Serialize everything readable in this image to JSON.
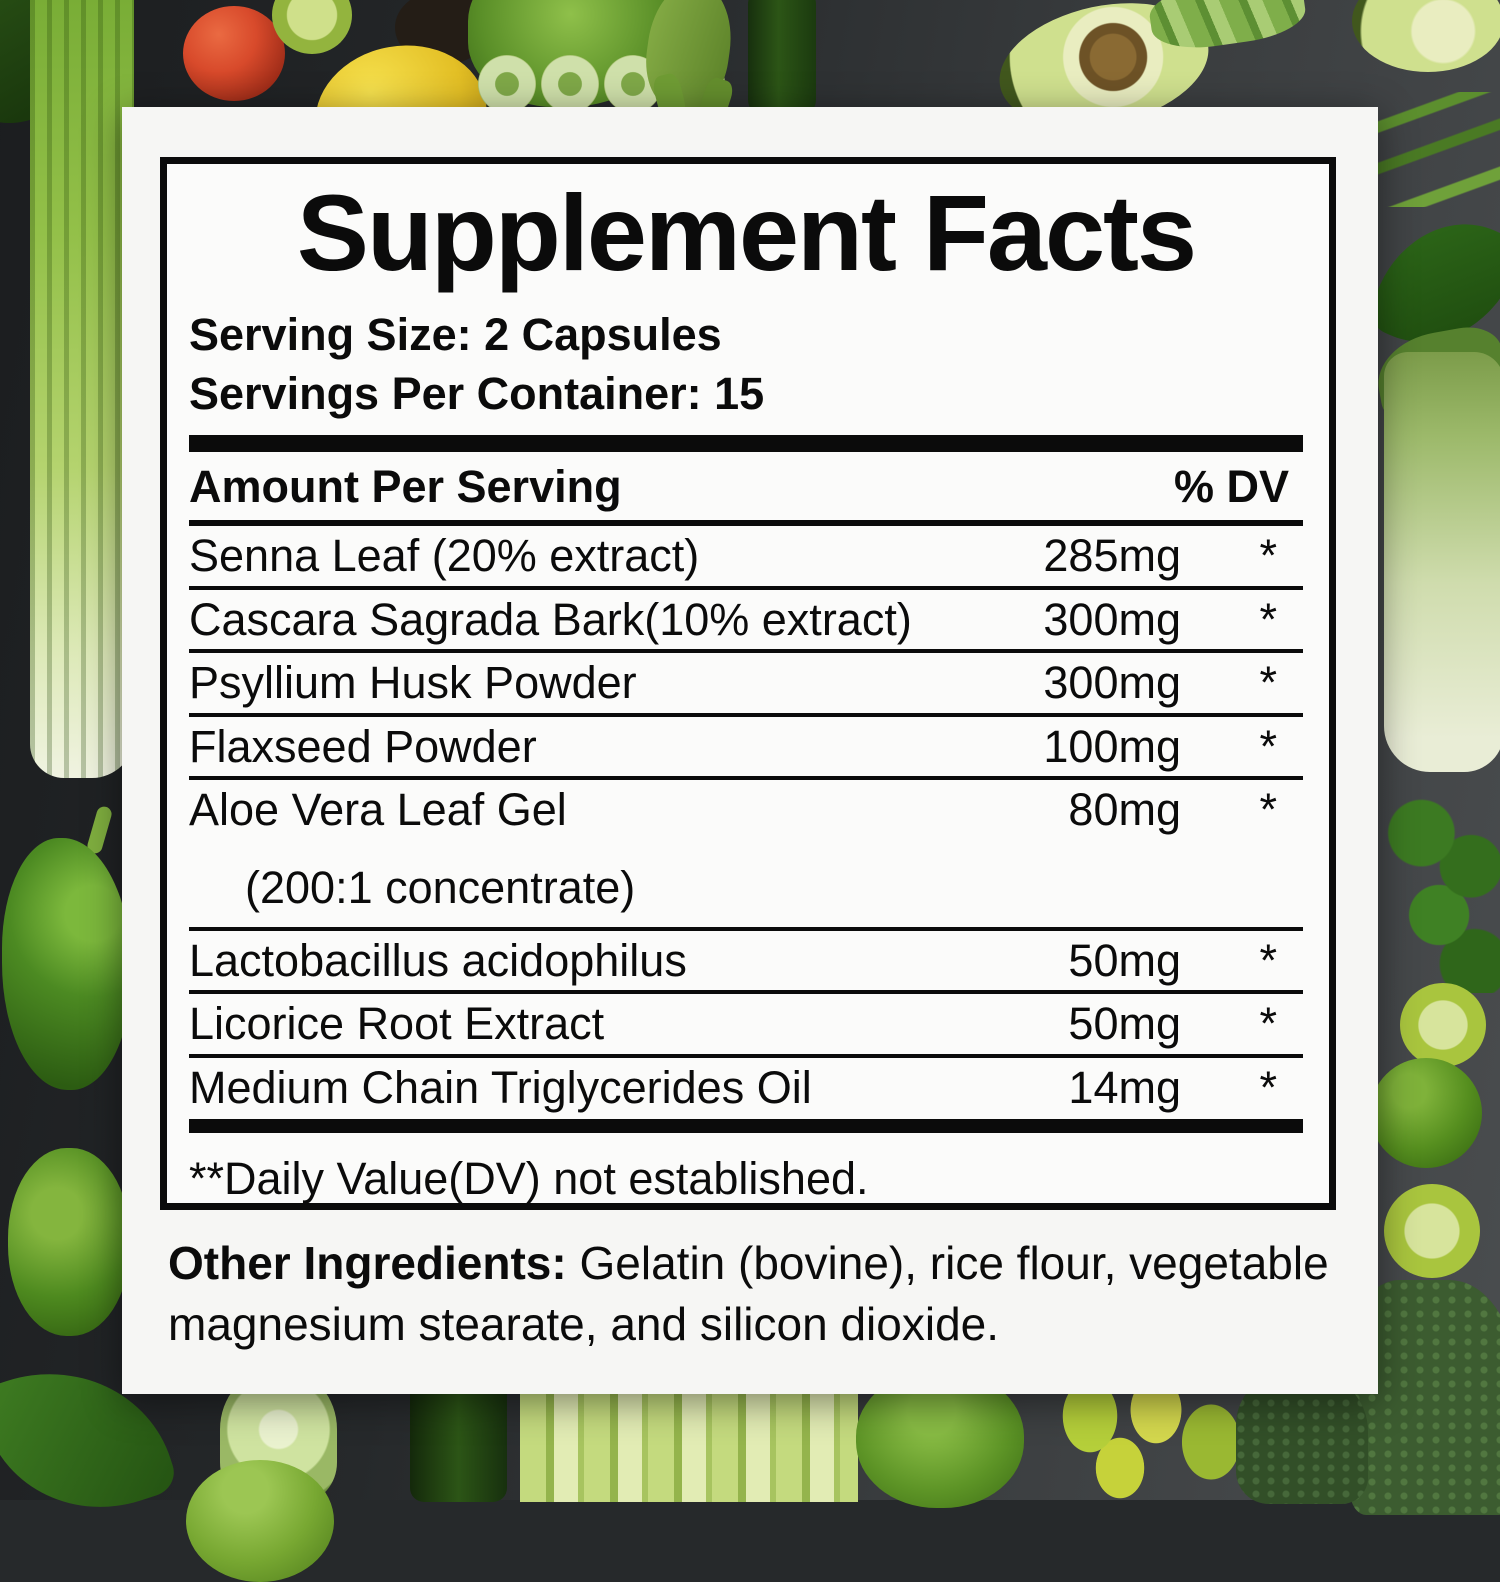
{
  "label": {
    "title": "Supplement Facts",
    "serving_size": "Serving Size: 2 Capsules",
    "servings_per_container": "Servings Per Container: 15",
    "table": {
      "amount_header": "Amount Per Serving",
      "dv_header": "% DV",
      "rows": [
        {
          "name": "Senna Leaf (20% extract)",
          "amount": "285mg",
          "dv": "*"
        },
        {
          "name": "Cascara Sagrada Bark(10% extract)",
          "amount": "300mg",
          "dv": "*"
        },
        {
          "name": "Psyllium Husk Powder",
          "amount": "300mg",
          "dv": "*"
        },
        {
          "name": "Flaxseed Powder",
          "amount": "100mg",
          "dv": "*"
        },
        {
          "name": "Aloe Vera Leaf Gel",
          "name2": "(200:1 concentrate)",
          "amount": "80mg",
          "dv": "*"
        },
        {
          "name": "Lactobacillus acidophilus",
          "amount": "50mg",
          "dv": "*"
        },
        {
          "name": "Licorice Root Extract",
          "amount": "50mg",
          "dv": "*"
        },
        {
          "name": "Medium Chain Triglycerides Oil",
          "amount": "14mg",
          "dv": "*"
        }
      ]
    },
    "footnote": "**Daily Value(DV) not established.",
    "other_ingredients": {
      "label": "Other Ingredients:",
      "text": " Gelatin (bovine), rice flour, vegetable magnesium stearate, and silicon dioxide."
    }
  },
  "background": {
    "description": "flat-lay photo of green vegetables and fruits on a dark slate surface",
    "items": [
      "celery stalk",
      "tomato",
      "lime slice",
      "lemon",
      "lettuce head",
      "leek slices",
      "corn husk",
      "okra pods",
      "zucchini",
      "avocado halves",
      "cucumber slices",
      "scallions",
      "green bell pepper",
      "lime",
      "spinach leaves",
      "bok choy",
      "cilantro",
      "broccoli florets",
      "broccoli stem slice",
      "green apples",
      "celery bundle",
      "mini bell peppers"
    ]
  },
  "colors": {
    "panel_white": "#f6f6f4",
    "ink_black": "#0b0b0b",
    "background_dark": "#26292b",
    "celery_green": "#a7cd55",
    "tomato_red": "#d84a2b",
    "lemon_yellow": "#e3bf25",
    "avocado_flesh": "#cfe08e",
    "broccoli_green": "#3c5c30"
  }
}
